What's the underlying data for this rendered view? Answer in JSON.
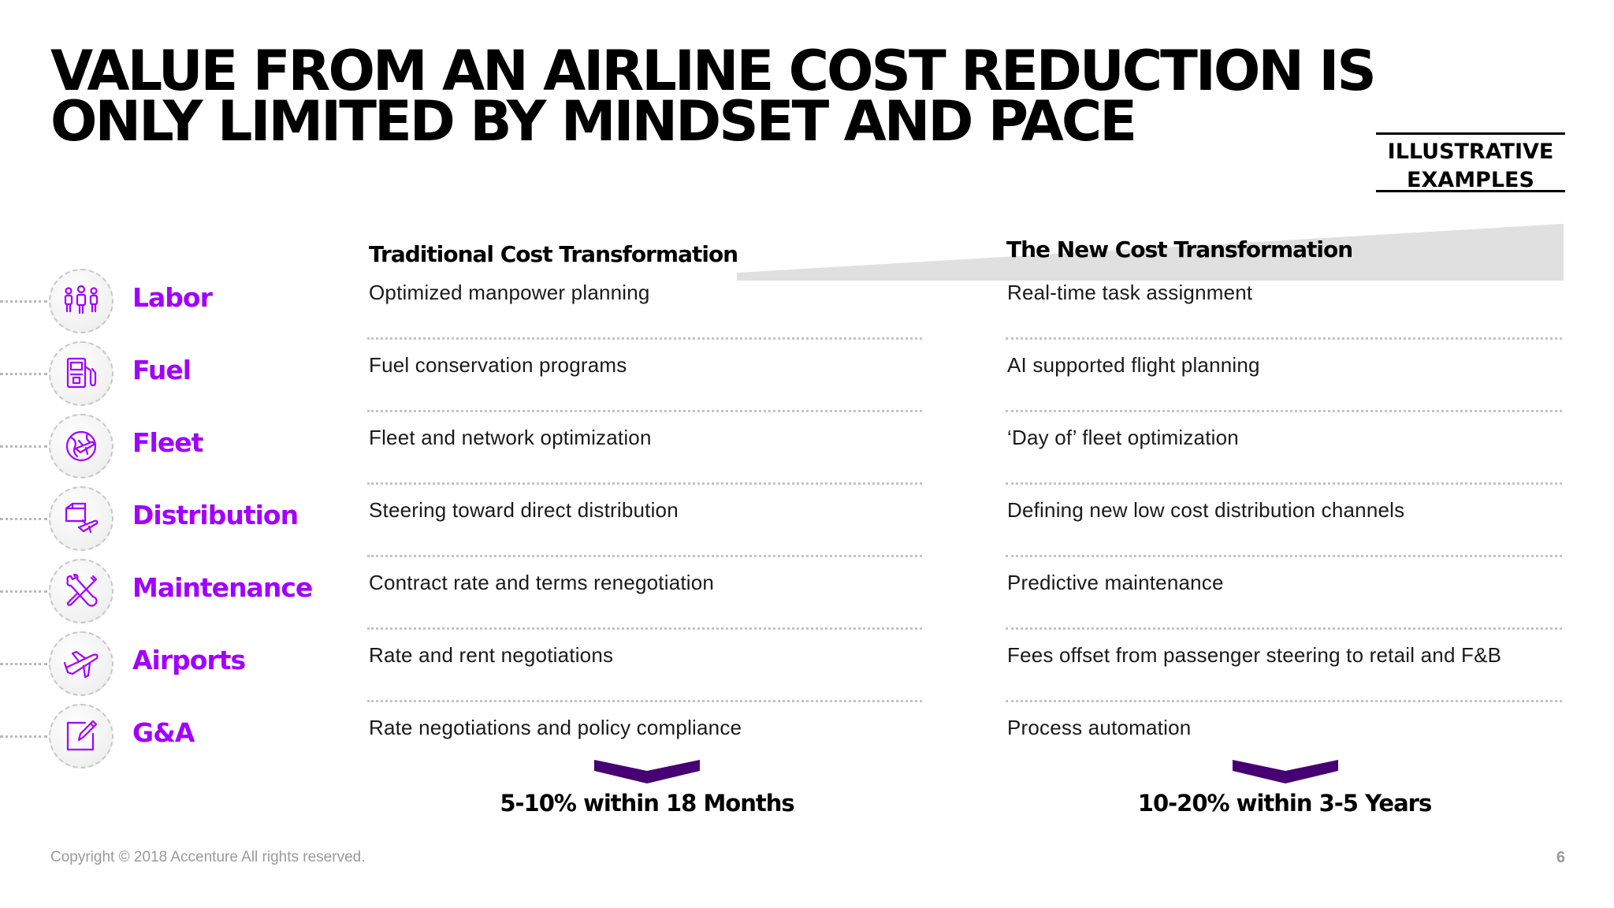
{
  "title": {
    "line1": "VALUE FROM AN AIRLINE COST REDUCTION IS",
    "line2": "ONLY LIMITED BY MINDSET AND PACE"
  },
  "badge": {
    "line1": "ILLUSTRATIVE",
    "line2": "EXAMPLES"
  },
  "columns": {
    "traditional": "Traditional Cost Transformation",
    "new": "The New Cost Transformation"
  },
  "rows": [
    {
      "category": "Labor",
      "icon": "people-icon",
      "traditional": "Optimized manpower planning",
      "new": "Real-time task assignment"
    },
    {
      "category": "Fuel",
      "icon": "fuel-pump-icon",
      "traditional": "Fuel conservation programs",
      "new": "AI supported flight planning"
    },
    {
      "category": "Fleet",
      "icon": "globe-plane-icon",
      "traditional": "Fleet and network optimization",
      "new": "‘Day of’ fleet optimization"
    },
    {
      "category": "Distribution",
      "icon": "package-plane-icon",
      "traditional": "Steering toward direct distribution",
      "new": "Defining new low cost distribution channels"
    },
    {
      "category": "Maintenance",
      "icon": "tools-icon",
      "traditional": "Contract rate and terms renegotiation",
      "new": "Predictive maintenance"
    },
    {
      "category": "Airports",
      "icon": "airplane-icon",
      "traditional": "Rate and rent negotiations",
      "new": "Fees offset from passenger steering to retail and F&B"
    },
    {
      "category": "G&A",
      "icon": "edit-document-icon",
      "traditional": "Rate negotiations and policy compliance",
      "new": "Process automation"
    }
  ],
  "results": {
    "traditional": "5-10% within 18 Months",
    "new": "10-20% within 3-5 Years"
  },
  "footer": {
    "copyright": "Copyright © 2018 Accenture  All rights reserved.",
    "page": "6"
  },
  "colors": {
    "accent": "#a100ff",
    "chevron": "#460073",
    "wedge": "#e0e0e0",
    "footer": "#9a9a9a"
  }
}
